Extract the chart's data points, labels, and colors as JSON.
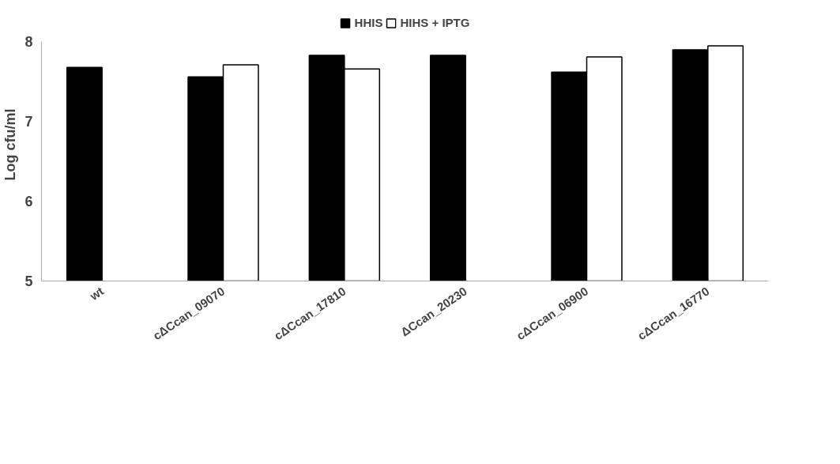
{
  "chart_data": {
    "type": "bar",
    "ylabel": "Log cfu/ml",
    "categories": [
      "wt",
      "cΔCcan_09070",
      "cΔCcan_17810",
      "ΔCcan_20230",
      "cΔCcan_06900",
      "cΔCcan_16770"
    ],
    "series": [
      {
        "name": "HHIS",
        "color": "#000000",
        "values": [
          7.68,
          7.56,
          7.83,
          7.83,
          7.62,
          7.9
        ]
      },
      {
        "name": "HIHS + IPTG",
        "color": "#ffffff",
        "values": [
          null,
          7.71,
          7.66,
          null,
          7.81,
          7.95
        ]
      }
    ],
    "ylim": [
      5,
      8
    ],
    "yticks": [
      5,
      6,
      7,
      8
    ],
    "grid": false,
    "legend": "top"
  }
}
